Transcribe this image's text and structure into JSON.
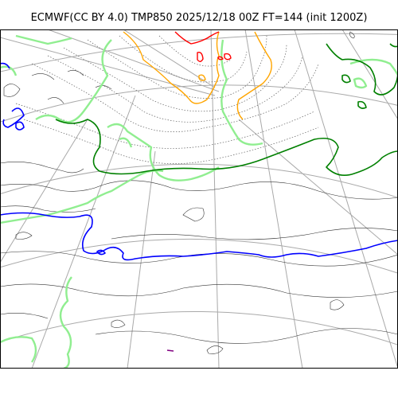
{
  "figure": {
    "title": "ECMWF(CC BY 4.0) TMP850 2025/12/18 00Z FT=144 (init 1200Z)"
  },
  "map": {
    "projection": "polar-stereographic",
    "background_color": "#ffffff",
    "graticule_color": "#a9a9a9",
    "coastline_color": "#000000",
    "contour_colors": {
      "light_green": "#90ee90",
      "dark_green": "#008000",
      "blue": "#0000ff",
      "orange": "#ffa500",
      "red": "#ff0000",
      "purple": "#800080",
      "gray_dotted": "#808080"
    }
  }
}
